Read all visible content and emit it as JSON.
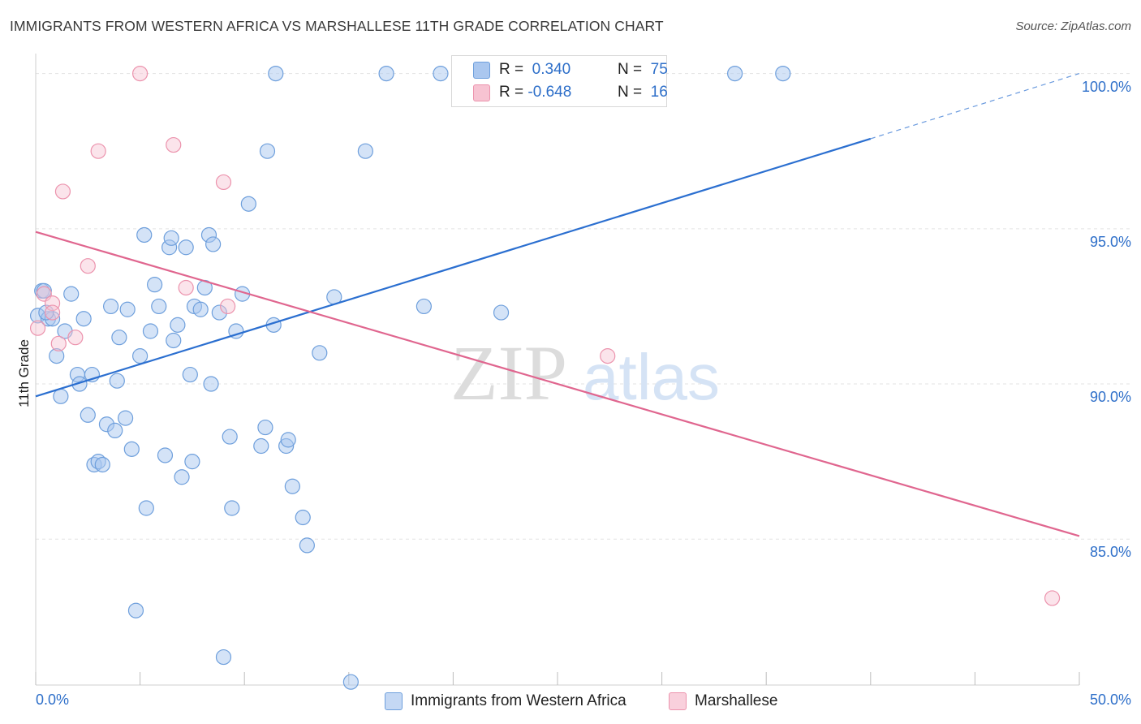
{
  "title": "IMMIGRANTS FROM WESTERN AFRICA VS MARSHALLESE 11TH GRADE CORRELATION CHART",
  "source": "Source: ZipAtlas.com",
  "watermark": {
    "zip": "ZIP",
    "atlas": "atlas"
  },
  "legend": {
    "rows": [
      {
        "r_label": "R =",
        "r_value": "0.340",
        "n_label": "N =",
        "n_value": "75",
        "color": "#aac7ef"
      },
      {
        "r_label": "R =",
        "r_value": "-0.648",
        "n_label": "N =",
        "n_value": "16",
        "color": "#f7b6c8"
      }
    ]
  },
  "bottom_legend": [
    {
      "label": "Immigrants from Western Africa",
      "color": "#aac7ef"
    },
    {
      "label": "Marshallese",
      "color": "#f7b6c8"
    }
  ],
  "colors": {
    "blue_fill": "#aac7ef",
    "blue_stroke": "#6e9fdc",
    "blue_line": "#2b6fd0",
    "pink_fill": "#f7c3d2",
    "pink_stroke": "#ec93ad",
    "pink_line": "#e0668f",
    "grid": "#e3e3e3",
    "axis_text": "#2e6fc9"
  },
  "chart_data": {
    "type": "scatter",
    "title": "IMMIGRANTS FROM WESTERN AFRICA VS MARSHALLESE 11TH GRADE CORRELATION CHART",
    "xlabel": "",
    "ylabel": "11th Grade",
    "xlim": [
      0,
      50
    ],
    "ylim": [
      80.3,
      100.8
    ],
    "x_tick_labels": [
      "0.0%",
      "50.0%"
    ],
    "y_ticks": [
      85,
      90,
      95,
      100
    ],
    "y_tick_labels": [
      "85.0%",
      "90.0%",
      "95.0%",
      "100.0%"
    ],
    "grid": true,
    "legend_position": "top-center",
    "series": [
      {
        "name": "Immigrants from Western Africa",
        "color": "#aac7ef",
        "trend": {
          "x": [
            0,
            40
          ],
          "y": [
            89.6,
            97.9
          ],
          "dashed_extension_to": [
            50,
            100.0
          ]
        },
        "points": [
          [
            0.1,
            92.2
          ],
          [
            0.3,
            93.0
          ],
          [
            0.4,
            93.0
          ],
          [
            0.6,
            92.1
          ],
          [
            0.8,
            92.1
          ],
          [
            1.0,
            90.9
          ],
          [
            1.2,
            89.6
          ],
          [
            1.4,
            91.7
          ],
          [
            1.7,
            92.9
          ],
          [
            2.0,
            90.3
          ],
          [
            2.1,
            90.0
          ],
          [
            2.3,
            92.1
          ],
          [
            2.5,
            89.0
          ],
          [
            2.7,
            90.3
          ],
          [
            2.8,
            87.4
          ],
          [
            3.0,
            87.5
          ],
          [
            3.2,
            87.4
          ],
          [
            3.4,
            88.7
          ],
          [
            3.6,
            92.5
          ],
          [
            3.8,
            88.5
          ],
          [
            3.9,
            90.1
          ],
          [
            4.0,
            91.5
          ],
          [
            4.3,
            88.9
          ],
          [
            4.4,
            92.4
          ],
          [
            4.6,
            87.9
          ],
          [
            4.8,
            82.7
          ],
          [
            5.0,
            90.9
          ],
          [
            5.2,
            94.8
          ],
          [
            5.3,
            86.0
          ],
          [
            5.5,
            91.7
          ],
          [
            5.7,
            93.2
          ],
          [
            5.9,
            92.5
          ],
          [
            6.2,
            87.7
          ],
          [
            6.4,
            94.4
          ],
          [
            6.5,
            94.7
          ],
          [
            6.6,
            91.4
          ],
          [
            6.8,
            91.9
          ],
          [
            7.0,
            87.0
          ],
          [
            7.2,
            94.4
          ],
          [
            7.4,
            90.3
          ],
          [
            7.5,
            87.5
          ],
          [
            7.6,
            92.5
          ],
          [
            7.9,
            92.4
          ],
          [
            8.1,
            93.1
          ],
          [
            8.3,
            94.8
          ],
          [
            8.4,
            90.0
          ],
          [
            8.5,
            94.5
          ],
          [
            8.8,
            92.3
          ],
          [
            9.0,
            81.2
          ],
          [
            9.3,
            88.3
          ],
          [
            9.4,
            86.0
          ],
          [
            9.6,
            91.7
          ],
          [
            9.9,
            92.9
          ],
          [
            10.2,
            95.8
          ],
          [
            10.8,
            88.0
          ],
          [
            11.0,
            88.6
          ],
          [
            11.1,
            97.5
          ],
          [
            11.4,
            91.9
          ],
          [
            11.5,
            100.0
          ],
          [
            12.0,
            88.0
          ],
          [
            12.1,
            88.2
          ],
          [
            12.3,
            86.7
          ],
          [
            12.8,
            85.7
          ],
          [
            13.0,
            84.8
          ],
          [
            13.6,
            91.0
          ],
          [
            14.3,
            92.8
          ],
          [
            15.1,
            80.4
          ],
          [
            15.8,
            97.5
          ],
          [
            16.8,
            100.0
          ],
          [
            18.6,
            92.5
          ],
          [
            19.4,
            100.0
          ],
          [
            22.3,
            92.3
          ],
          [
            33.5,
            100.0
          ],
          [
            35.8,
            100.0
          ],
          [
            0.5,
            92.3
          ]
        ]
      },
      {
        "name": "Marshallese",
        "color": "#f7b6c8",
        "trend": {
          "x": [
            0,
            50
          ],
          "y": [
            94.9,
            85.1
          ]
        },
        "points": [
          [
            0.1,
            91.8
          ],
          [
            0.4,
            92.9
          ],
          [
            0.8,
            92.6
          ],
          [
            0.8,
            92.3
          ],
          [
            1.1,
            91.3
          ],
          [
            1.3,
            96.2
          ],
          [
            1.9,
            91.5
          ],
          [
            2.5,
            93.8
          ],
          [
            3.0,
            97.5
          ],
          [
            5.0,
            100.0
          ],
          [
            6.6,
            97.7
          ],
          [
            7.2,
            93.1
          ],
          [
            9.0,
            96.5
          ],
          [
            9.2,
            92.5
          ],
          [
            27.4,
            90.9
          ],
          [
            48.7,
            83.1
          ]
        ]
      }
    ]
  }
}
